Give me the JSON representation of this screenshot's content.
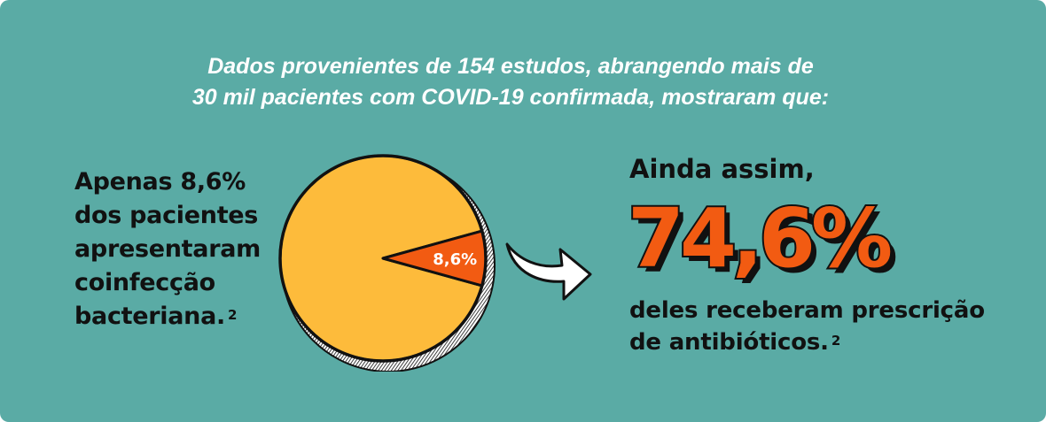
{
  "headline": {
    "line1": "Dados provenientes de 154 estudos, abrangendo mais de",
    "line2": "30 mil pacientes com COVID-19 confirmada, mostraram que:"
  },
  "left_text": {
    "lines": [
      "Apenas 8,6%",
      "dos pacientes",
      "apresentaram",
      "coinfecção",
      "bacteriana."
    ],
    "ref": "2"
  },
  "right_text": {
    "top": "Ainda assim,",
    "big_percent": "74,6%",
    "bottom_line1": "deles receberam prescrição",
    "bottom_line2": "de antibióticos.",
    "ref": "2"
  },
  "colors": {
    "background": "#5aaba5",
    "pie_main": "#fdbb3b",
    "pie_highlight": "#f25b12",
    "text_dark": "#111111",
    "text_light": "#ffffff"
  },
  "chart_data": {
    "type": "pie",
    "slices": [
      {
        "label": "8,6%",
        "value": 8.6,
        "color": "#f25b12"
      },
      {
        "label": "",
        "value": 91.4,
        "color": "#fdbb3b"
      }
    ]
  }
}
